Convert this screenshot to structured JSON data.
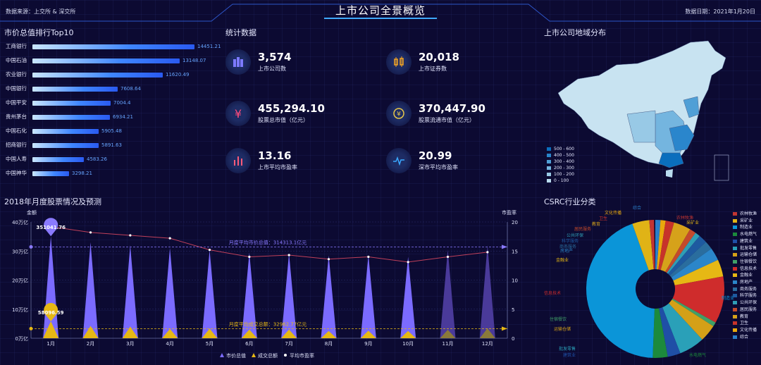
{
  "header": {
    "title": "上市公司全景概览",
    "source": "数据来源：上交所 & 深交所",
    "date": "数据日期：2021年1月20日"
  },
  "ranking": {
    "title": "市价总值排行Top10",
    "items": [
      {
        "name": "工商银行",
        "value": "14451.21",
        "num": 14451.21
      },
      {
        "name": "中国石油",
        "value": "13148.07",
        "num": 13148.07
      },
      {
        "name": "农业银行",
        "value": "11620.49",
        "num": 11620.49
      },
      {
        "name": "中国银行",
        "value": "7608.64",
        "num": 7608.64
      },
      {
        "name": "中国平安",
        "value": "7004.4",
        "num": 7004.4
      },
      {
        "name": "贵州茅台",
        "value": "6934.21",
        "num": 6934.21
      },
      {
        "name": "中国石化",
        "value": "5905.48",
        "num": 5905.48
      },
      {
        "name": "招商银行",
        "value": "5891.63",
        "num": 5891.63
      },
      {
        "name": "中国人寿",
        "value": "4583.26",
        "num": 4583.26
      },
      {
        "name": "中国神华",
        "value": "3298.21",
        "num": 3298.21
      }
    ]
  },
  "stats": {
    "title": "统计数据",
    "items": [
      {
        "value": "3,574",
        "label": "上市公司数",
        "icon": "building-icon",
        "color": "#7d7aff"
      },
      {
        "value": "20,018",
        "label": "上市证券数",
        "icon": "candlestick-icon",
        "color": "#f6a623"
      },
      {
        "value": "455,294.10",
        "label": "股票总市值（亿元）",
        "icon": "yen-icon",
        "color": "#ff4b7d"
      },
      {
        "value": "370,447.90",
        "label": "股票流通市值（亿元）",
        "icon": "coin-icon",
        "color": "#e8c84a"
      },
      {
        "value": "13.16",
        "label": "上市平均市盈率",
        "icon": "bar-chart-icon",
        "color": "#ff5a7a"
      },
      {
        "value": "20.99",
        "label": "深市平均市盈率",
        "icon": "pulse-icon",
        "color": "#3aa8ff"
      }
    ]
  },
  "map": {
    "title": "上市公司地域分布",
    "legend": [
      {
        "label": "500 - 600",
        "color": "#0a6ebd"
      },
      {
        "label": "400 - 500",
        "color": "#2a86cc"
      },
      {
        "label": "300 - 400",
        "color": "#4f9fd6"
      },
      {
        "label": "200 - 300",
        "color": "#74b5df"
      },
      {
        "label": "100 - 200",
        "color": "#98c9e6"
      },
      {
        "label": "0 - 100",
        "color": "#b9dcef"
      }
    ]
  },
  "monthly": {
    "title": "2018年月度股票情况及预测",
    "left_axis": "金额",
    "right_axis": "市盈率",
    "left_ticks": [
      "40万亿",
      "30万亿",
      "20万亿",
      "10万亿",
      "0万亿"
    ],
    "right_ticks": [
      "20",
      "15",
      "10",
      "5",
      "0"
    ],
    "avg_mv_label": "月度平均市价总值：314313.1亿元",
    "avg_tv_label": "月度平均成交总额：32962.77亿元",
    "max_label": "351041.76",
    "max2_label": "58096.59",
    "legend": [
      "市价总值",
      "成交总额",
      "平均市盈率"
    ]
  },
  "chart_data": {
    "type": "bar",
    "categories": [
      "1月",
      "2月",
      "3月",
      "4月",
      "5月",
      "6月",
      "7月",
      "8月",
      "9月",
      "10月",
      "11月",
      "12月"
    ],
    "series": [
      {
        "name": "市价总值",
        "unit": "亿元",
        "values": [
          351041.76,
          330000,
          320000,
          310000,
          303000,
          295000,
          292000,
          285000,
          287000,
          280000,
          305000,
          320000
        ]
      },
      {
        "name": "成交总额",
        "unit": "亿元",
        "values": [
          58096.59,
          42000,
          40000,
          32000,
          33000,
          30000,
          30000,
          25000,
          26000,
          25000,
          29000,
          34000
        ]
      },
      {
        "name": "平均市盈率",
        "values": [
          19.2,
          18.2,
          17.7,
          17.2,
          15.2,
          14.0,
          14.3,
          13.6,
          14.0,
          13.1,
          14.0,
          14.8
        ]
      }
    ],
    "ylim": [
      0,
      400000
    ],
    "y2lim": [
      0,
      20
    ],
    "forecast_months": [
      "11月",
      "12月"
    ]
  },
  "industry": {
    "title": "CSRC行业分类",
    "legend": [
      {
        "label": "农林牧渔",
        "color": "#c23531"
      },
      {
        "label": "采矿业",
        "color": "#e0b316"
      },
      {
        "label": "制造业",
        "color": "#0b95d8"
      },
      {
        "label": "水电燃气",
        "color": "#1c8a3c"
      },
      {
        "label": "建筑业",
        "color": "#1f4fa6"
      },
      {
        "label": "批发零售",
        "color": "#2aa0b8"
      },
      {
        "label": "运输仓储",
        "color": "#d4a017"
      },
      {
        "label": "住宿餐饮",
        "color": "#40a068"
      },
      {
        "label": "信息技术",
        "color": "#cf2c2c"
      },
      {
        "label": "金融业",
        "color": "#e6b814"
      },
      {
        "label": "房地产",
        "color": "#2b86c9"
      },
      {
        "label": "商务服务",
        "color": "#2a6d9e"
      },
      {
        "label": "科学服务",
        "color": "#1e5aa0"
      },
      {
        "label": "公共环保",
        "color": "#2f9eb5"
      },
      {
        "label": "居民服务",
        "color": "#c44a2c"
      },
      {
        "label": "教育",
        "color": "#d6a21a"
      },
      {
        "label": "卫生",
        "color": "#c7332a"
      },
      {
        "label": "文化传播",
        "color": "#e9a90c"
      },
      {
        "label": "综合",
        "color": "#2a7ec8"
      }
    ],
    "labels": [
      "综合",
      "文化传播",
      "卫生",
      "教育",
      "居民服务",
      "公共环保",
      "科学服务",
      "商务服务",
      "房地产",
      "金融业",
      "信息技术",
      "住宿餐饮",
      "运输仓储",
      "批发零售",
      "建筑业",
      "水电燃气",
      "制造业",
      "采矿业",
      "农林牧渔"
    ]
  }
}
